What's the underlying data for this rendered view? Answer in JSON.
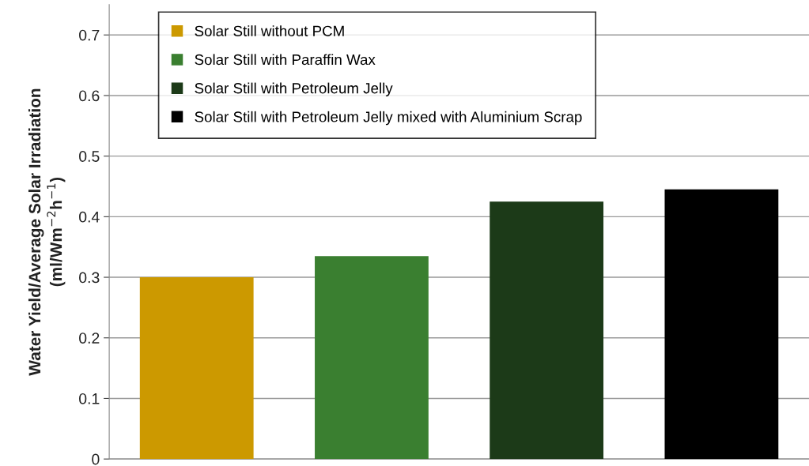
{
  "chart_data": {
    "type": "bar",
    "ylabel": "Water Yield/Average Solar Irradiation\n(ml/Wm$^{−2}$h$^{−1}$)",
    "categories": [
      null,
      null,
      null,
      null
    ],
    "series": [
      {
        "name": "Solar Still without PCM",
        "color": "#cc9900",
        "values": [
          0.3,
          null,
          null,
          null
        ]
      },
      {
        "name": "Solar Still with Paraffin Wax",
        "color": "#3a7f30",
        "values": [
          null,
          0.335,
          null,
          null
        ]
      },
      {
        "name": "Solar Still with Petroleum Jelly",
        "color": "#1c3a18",
        "values": [
          null,
          null,
          0.425,
          null
        ]
      },
      {
        "name": "Solar Still with Petroleum Jelly mixed with Aluminium Scrap",
        "color": "#000000",
        "values": [
          null,
          null,
          null,
          0.445
        ]
      }
    ],
    "ylim": [
      0,
      0.75
    ],
    "yticks": [
      0,
      0.1,
      0.2,
      0.3,
      0.4,
      0.5,
      0.6,
      0.7
    ],
    "grid": "y",
    "legend": "top left"
  }
}
